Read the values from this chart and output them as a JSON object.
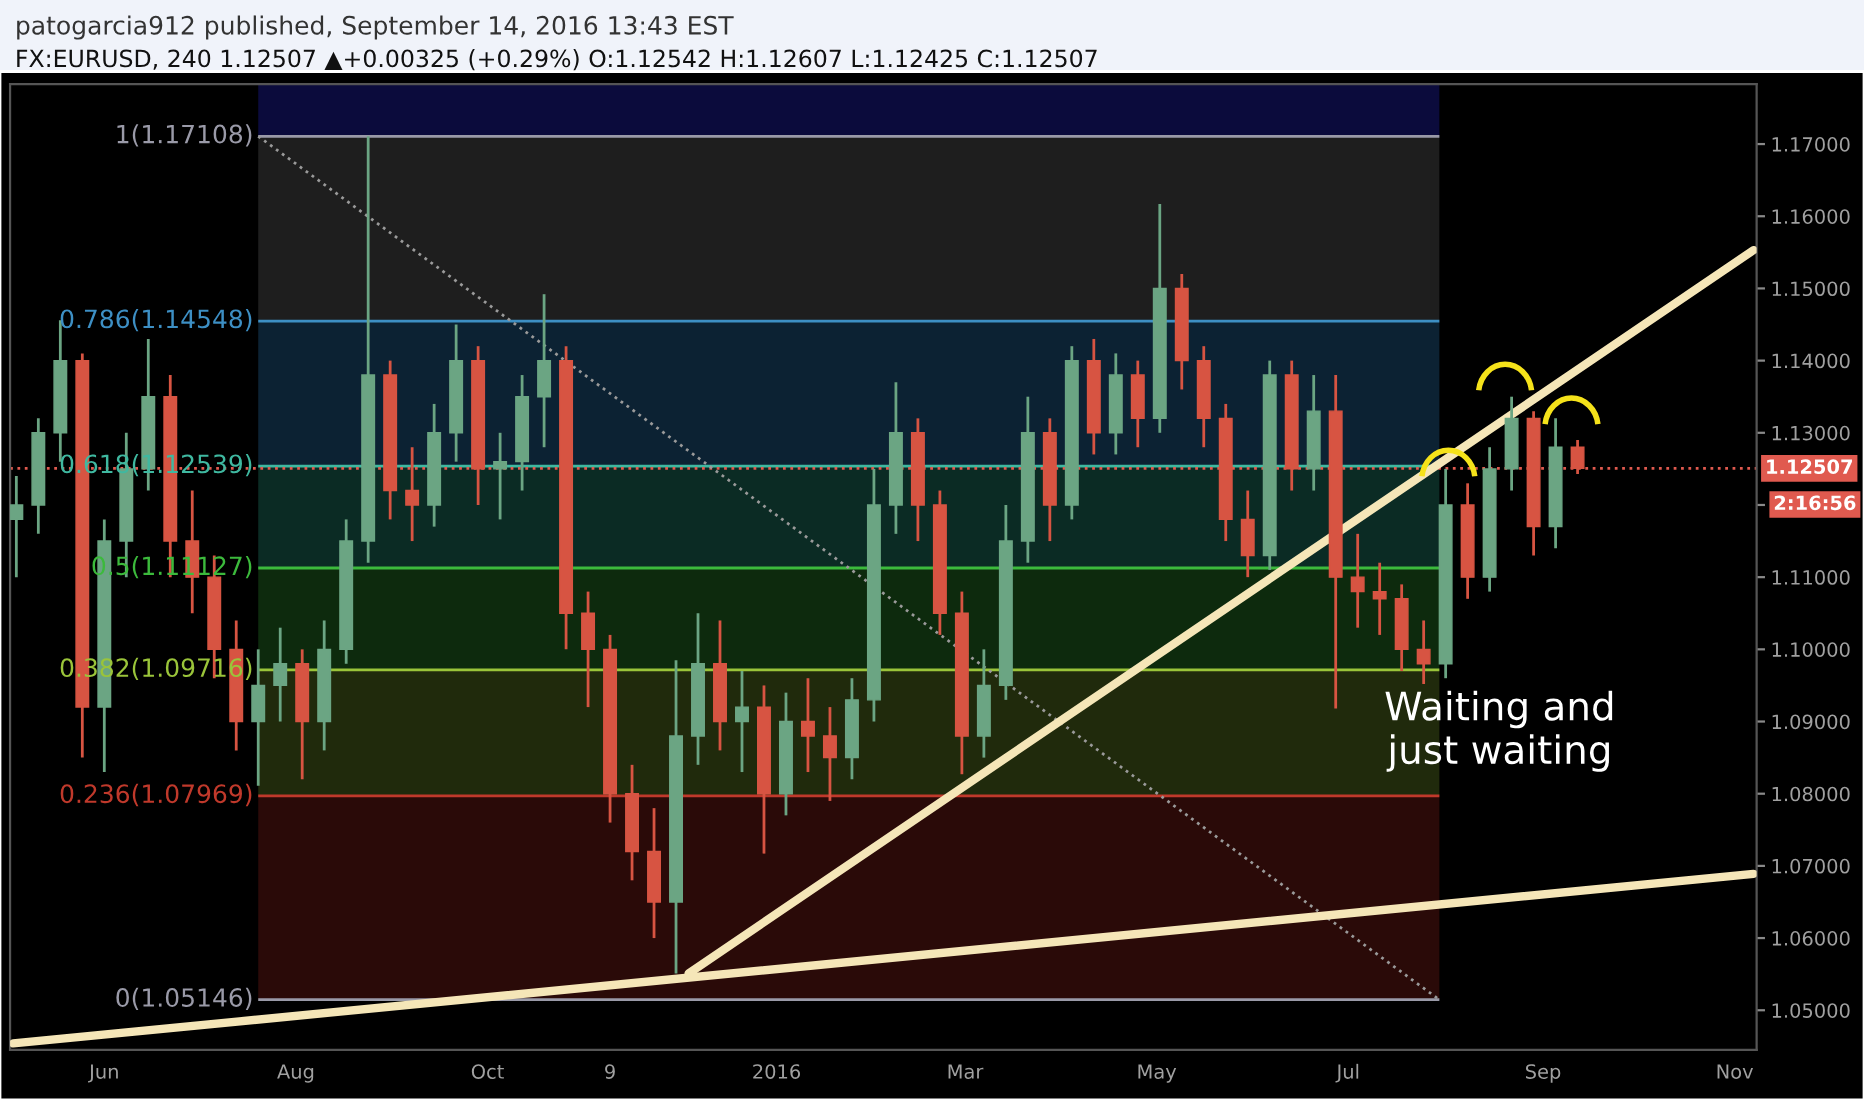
{
  "chart_data": {
    "type": "candlestick",
    "title": "patogarcia912 published, September 14, 2016 13:43 EST",
    "subtitle": "FX:EURUSD, 240 1.12507 ▲+0.00325 (+0.29%) O:1.12542 H:1.12607 L:1.12425 C:1.12507",
    "x": [
      "2015-05-04",
      "2015-05-11",
      "2015-05-18",
      "2015-05-25",
      "2015-06-01",
      "2015-06-08",
      "2015-06-15",
      "2015-06-22",
      "2015-06-29",
      "2015-07-06",
      "2015-07-13",
      "2015-07-20",
      "2015-07-27",
      "2015-08-03",
      "2015-08-10",
      "2015-08-17",
      "2015-08-24",
      "2015-08-31",
      "2015-09-07",
      "2015-09-14",
      "2015-09-21",
      "2015-09-28",
      "2015-10-05",
      "2015-10-12",
      "2015-10-19",
      "2015-10-26",
      "2015-11-02",
      "2015-11-09",
      "2015-11-16",
      "2015-11-23",
      "2015-11-30",
      "2015-12-07",
      "2015-12-14",
      "2015-12-21",
      "2015-12-28",
      "2016-01-04",
      "2016-01-11",
      "2016-01-18",
      "2016-01-25",
      "2016-02-01",
      "2016-02-08",
      "2016-02-15",
      "2016-02-22",
      "2016-02-29",
      "2016-03-07",
      "2016-03-14",
      "2016-03-21",
      "2016-03-28",
      "2016-04-04",
      "2016-04-11",
      "2016-04-18",
      "2016-04-25",
      "2016-05-02",
      "2016-05-09",
      "2016-05-16",
      "2016-05-23",
      "2016-05-30",
      "2016-06-06",
      "2016-06-13",
      "2016-06-20",
      "2016-06-27",
      "2016-07-04",
      "2016-07-11",
      "2016-07-18",
      "2016-07-25",
      "2016-08-01",
      "2016-08-08",
      "2016-08-15",
      "2016-08-22",
      "2016-08-29",
      "2016-09-05",
      "2016-09-12"
    ],
    "ohlc": [
      [
        1.118,
        1.124,
        1.11,
        1.12
      ],
      [
        1.12,
        1.132,
        1.116,
        1.13
      ],
      [
        1.13,
        1.1456,
        1.126,
        1.14
      ],
      [
        1.14,
        1.141,
        1.085,
        1.092
      ],
      [
        1.092,
        1.118,
        1.083,
        1.115
      ],
      [
        1.115,
        1.13,
        1.11,
        1.125
      ],
      [
        1.125,
        1.143,
        1.122,
        1.135
      ],
      [
        1.135,
        1.138,
        1.11,
        1.115
      ],
      [
        1.115,
        1.122,
        1.105,
        1.11
      ],
      [
        1.11,
        1.113,
        1.096,
        1.1
      ],
      [
        1.1,
        1.104,
        1.086,
        1.09
      ],
      [
        1.09,
        1.1,
        1.0811,
        1.095
      ],
      [
        1.095,
        1.103,
        1.09,
        1.098
      ],
      [
        1.098,
        1.1,
        1.082,
        1.09
      ],
      [
        1.09,
        1.104,
        1.086,
        1.1
      ],
      [
        1.1,
        1.118,
        1.098,
        1.115
      ],
      [
        1.115,
        1.17108,
        1.112,
        1.138
      ],
      [
        1.138,
        1.14,
        1.118,
        1.122
      ],
      [
        1.122,
        1.128,
        1.115,
        1.12
      ],
      [
        1.12,
        1.134,
        1.117,
        1.13
      ],
      [
        1.13,
        1.145,
        1.126,
        1.14
      ],
      [
        1.14,
        1.142,
        1.12,
        1.125
      ],
      [
        1.125,
        1.13,
        1.118,
        1.126
      ],
      [
        1.126,
        1.138,
        1.122,
        1.135
      ],
      [
        1.135,
        1.1492,
        1.128,
        1.14
      ],
      [
        1.14,
        1.142,
        1.1,
        1.105
      ],
      [
        1.105,
        1.108,
        1.092,
        1.1
      ],
      [
        1.1,
        1.102,
        1.076,
        1.08
      ],
      [
        1.08,
        1.084,
        1.068,
        1.072
      ],
      [
        1.072,
        1.078,
        1.06,
        1.065
      ],
      [
        1.065,
        1.0985,
        1.0551,
        1.088
      ],
      [
        1.088,
        1.105,
        1.084,
        1.098
      ],
      [
        1.098,
        1.104,
        1.086,
        1.09
      ],
      [
        1.09,
        1.097,
        1.083,
        1.092
      ],
      [
        1.092,
        1.095,
        1.0717,
        1.08
      ],
      [
        1.08,
        1.094,
        1.077,
        1.09
      ],
      [
        1.09,
        1.096,
        1.083,
        1.088
      ],
      [
        1.088,
        1.092,
        1.079,
        1.085
      ],
      [
        1.085,
        1.096,
        1.082,
        1.093
      ],
      [
        1.093,
        1.125,
        1.09,
        1.12
      ],
      [
        1.12,
        1.137,
        1.116,
        1.13
      ],
      [
        1.13,
        1.132,
        1.115,
        1.12
      ],
      [
        1.12,
        1.122,
        1.102,
        1.105
      ],
      [
        1.105,
        1.108,
        1.0827,
        1.088
      ],
      [
        1.088,
        1.1,
        1.085,
        1.095
      ],
      [
        1.095,
        1.12,
        1.093,
        1.115
      ],
      [
        1.115,
        1.135,
        1.112,
        1.13
      ],
      [
        1.13,
        1.132,
        1.115,
        1.12
      ],
      [
        1.12,
        1.142,
        1.118,
        1.14
      ],
      [
        1.14,
        1.143,
        1.127,
        1.13
      ],
      [
        1.13,
        1.141,
        1.127,
        1.138
      ],
      [
        1.138,
        1.14,
        1.128,
        1.132
      ],
      [
        1.132,
        1.1617,
        1.13,
        1.15
      ],
      [
        1.15,
        1.152,
        1.136,
        1.14
      ],
      [
        1.14,
        1.142,
        1.128,
        1.132
      ],
      [
        1.132,
        1.134,
        1.115,
        1.118
      ],
      [
        1.118,
        1.122,
        1.11,
        1.113
      ],
      [
        1.113,
        1.14,
        1.111,
        1.138
      ],
      [
        1.138,
        1.14,
        1.122,
        1.125
      ],
      [
        1.125,
        1.138,
        1.122,
        1.133
      ],
      [
        1.133,
        1.138,
        1.0918,
        1.11
      ],
      [
        1.11,
        1.116,
        1.103,
        1.108
      ],
      [
        1.108,
        1.112,
        1.102,
        1.107
      ],
      [
        1.107,
        1.109,
        1.097,
        1.1
      ],
      [
        1.1,
        1.104,
        1.0952,
        1.098
      ],
      [
        1.098,
        1.125,
        1.096,
        1.12
      ],
      [
        1.12,
        1.123,
        1.107,
        1.11
      ],
      [
        1.11,
        1.128,
        1.108,
        1.125
      ],
      [
        1.125,
        1.135,
        1.122,
        1.132
      ],
      [
        1.132,
        1.133,
        1.113,
        1.117
      ],
      [
        1.117,
        1.132,
        1.114,
        1.128
      ],
      [
        1.128,
        1.129,
        1.1243,
        1.12507
      ]
    ],
    "colors": [
      "#6ba583",
      "#6ba583",
      "#6ba583",
      "#d75442",
      "#6ba583",
      "#6ba583",
      "#6ba583",
      "#d75442",
      "#d75442",
      "#d75442",
      "#d75442",
      "#6ba583",
      "#6ba583",
      "#d75442",
      "#6ba583",
      "#6ba583",
      "#6ba583",
      "#d75442",
      "#d75442",
      "#6ba583",
      "#6ba583",
      "#d75442",
      "#6ba583",
      "#6ba583",
      "#6ba583",
      "#d75442",
      "#d75442",
      "#d75442",
      "#d75442",
      "#d75442",
      "#6ba583",
      "#6ba583",
      "#d75442",
      "#6ba583",
      "#d75442",
      "#6ba583",
      "#d75442",
      "#d75442",
      "#6ba583",
      "#6ba583",
      "#6ba583",
      "#d75442",
      "#d75442",
      "#d75442",
      "#6ba583",
      "#6ba583",
      "#6ba583",
      "#d75442",
      "#6ba583",
      "#d75442",
      "#6ba583",
      "#d75442",
      "#6ba583",
      "#d75442",
      "#d75442",
      "#d75442",
      "#d75442",
      "#6ba583",
      "#d75442",
      "#6ba583",
      "#d75442",
      "#d75442",
      "#d75442",
      "#d75442",
      "#d75442",
      "#6ba583",
      "#d75442",
      "#6ba583",
      "#6ba583",
      "#d75442",
      "#6ba583",
      "#d75442"
    ],
    "series": [
      {
        "type": "line",
        "x": [
          "2015-07-20",
          "2016-07-30"
        ],
        "values": [
          1.17108,
          1.05146
        ],
        "color": "#9a9a9a",
        "line_style": "dotted"
      },
      {
        "type": "line",
        "x": [
          "2015-12-04",
          "2016-11-07"
        ],
        "values": [
          1.0551,
          1.1553
        ],
        "color": "#f5e6b8",
        "line_style": "solid"
      },
      {
        "type": "line",
        "x": [
          "2015-05-03",
          "2016-11-07"
        ],
        "values": [
          1.0454,
          1.0689
        ],
        "color": "#f5e6b8",
        "line_style": "solid"
      }
    ],
    "bands": [
      {
        "axis": "y",
        "from": 1.17108,
        "to": 1.1783,
        "color": "#0b0b3c"
      },
      {
        "axis": "y",
        "from": 1.14548,
        "to": 1.17108,
        "color": "#1e1e1e"
      },
      {
        "axis": "y",
        "from": 1.12539,
        "to": 1.14548,
        "color": "#0c2233"
      },
      {
        "axis": "y",
        "from": 1.11127,
        "to": 1.12539,
        "color": "#0b2b24"
      },
      {
        "axis": "y",
        "from": 1.09716,
        "to": 1.11127,
        "color": "#0d2a0d"
      },
      {
        "axis": "y",
        "from": 1.07969,
        "to": 1.09716,
        "color": "#202a0c"
      },
      {
        "axis": "y",
        "from": 1.05146,
        "to": 1.07969,
        "color": "#2a0a08"
      }
    ],
    "ref_lines": [
      {
        "axis": "y",
        "value": 1.17108,
        "label": "1(1.17108)",
        "color": "#9a9aa8",
        "line_style": "solid"
      },
      {
        "axis": "y",
        "value": 1.14548,
        "label": "0.786(1.14548)",
        "color": "#3d8fc4",
        "line_style": "solid"
      },
      {
        "axis": "y",
        "value": 1.12539,
        "label": "0.618(1.12539)",
        "color": "#3fb8a0",
        "line_style": "solid"
      },
      {
        "axis": "y",
        "value": 1.11127,
        "label": "0.5(1.11127)",
        "color": "#3cba3c",
        "line_style": "solid"
      },
      {
        "axis": "y",
        "value": 1.09716,
        "label": "0.382(1.09716)",
        "color": "#9ac43a",
        "line_style": "solid"
      },
      {
        "axis": "y",
        "value": 1.07969,
        "label": "0.236(1.07969)",
        "color": "#c0392b",
        "line_style": "solid"
      },
      {
        "axis": "y",
        "value": 1.05146,
        "label": "0(1.05146)",
        "color": "#9a9aa8",
        "line_style": "solid"
      },
      {
        "axis": "y",
        "value": 1.12507,
        "label": "1.12507",
        "color": "#e05a4f",
        "line_style": "dotted"
      }
    ],
    "annotations": [
      "2:16:56",
      "Waiting and\njust waiting"
    ],
    "xlim": [
      "2015-05-02",
      "2016-11-08"
    ],
    "ylim": [
      1.0445,
      1.1783
    ],
    "xticks": [
      {
        "value": "2015-06-01",
        "label": "Jun"
      },
      {
        "value": "2015-08-01",
        "label": "Aug"
      },
      {
        "value": "2015-10-01",
        "label": "Oct"
      },
      {
        "value": "2015-11-09",
        "label": "9"
      },
      {
        "value": "2016-01-01",
        "label": "2016"
      },
      {
        "value": "2016-03-01",
        "label": "Mar"
      },
      {
        "value": "2016-05-01",
        "label": "May"
      },
      {
        "value": "2016-07-01",
        "label": "Jul"
      },
      {
        "value": "2016-09-01",
        "label": "Sep"
      },
      {
        "value": "2016-11-01",
        "label": "Nov"
      }
    ],
    "yticks": [
      {
        "value": 1.05,
        "label": "1.05000"
      },
      {
        "value": 1.06,
        "label": "1.06000"
      },
      {
        "value": 1.07,
        "label": "1.07000"
      },
      {
        "value": 1.08,
        "label": "1.08000"
      },
      {
        "value": 1.09,
        "label": "1.09000"
      },
      {
        "value": 1.1,
        "label": "1.10000"
      },
      {
        "value": 1.11,
        "label": "1.11000"
      },
      {
        "value": 1.12,
        "label": null
      },
      {
        "value": 1.13,
        "label": "1.13000"
      },
      {
        "value": 1.14,
        "label": "1.14000"
      },
      {
        "value": 1.15,
        "label": "1.15000"
      },
      {
        "value": 1.16,
        "label": "1.16000"
      },
      {
        "value": 1.17,
        "label": "1.17000"
      }
    ],
    "grid": false
  }
}
